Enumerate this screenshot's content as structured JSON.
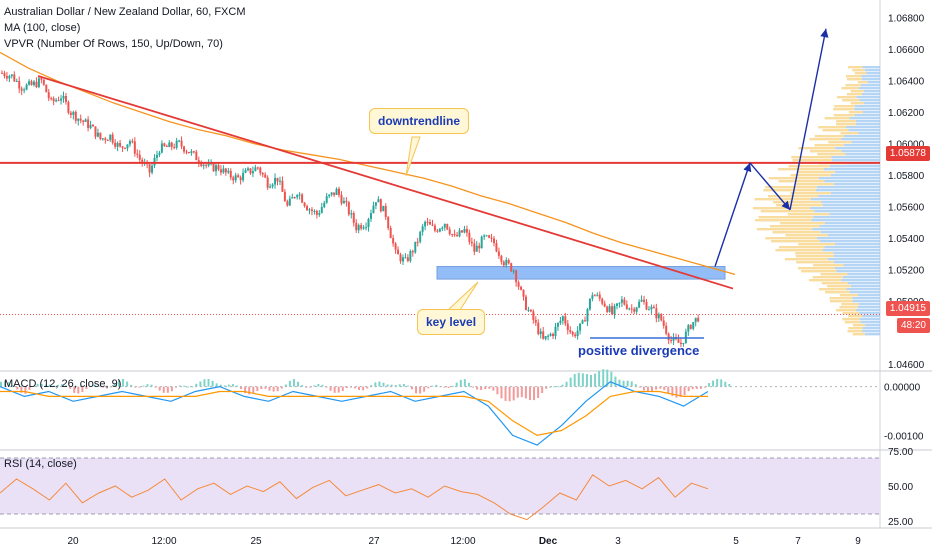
{
  "header": {
    "title": "Australian Dollar / New Zealand Dollar, 60, FXCM",
    "ma": "MA (100, close)",
    "vpvr": "VPVR (Number Of Rows, 150, Up/Down, 70)"
  },
  "annotations": {
    "downtrend": "downtrendline",
    "key_level": "key level",
    "divergence": "positive divergence"
  },
  "price_tags": {
    "resistance": "1.05878",
    "current": "1.04915",
    "countdown": "48:20"
  },
  "colors": {
    "up": "#26a69a",
    "down": "#ef5350",
    "ma": "#f7931e",
    "trendline": "#e53935",
    "hline": "#e53935",
    "key_zone": "#6fa8f5",
    "arrows": "#1a2fa8",
    "macd": "#2196f3",
    "signal": "#ff9800",
    "rsi": "#f48a3c",
    "rsi_band": "#ebe1f7"
  },
  "chart_data": [
    {
      "type": "candlestick",
      "title": "Australian Dollar / New Zealand Dollar, 60, FXCM",
      "ylim": [
        1.0455,
        1.069
      ],
      "y_ticks": [
        "1.06800",
        "1.06600",
        "1.06400",
        "1.06200",
        "1.06000",
        "1.05800",
        "1.05600",
        "1.05400",
        "1.05200",
        "1.05000",
        "1.04600"
      ],
      "y_tick_values": [
        1.068,
        1.066,
        1.064,
        1.062,
        1.06,
        1.058,
        1.056,
        1.054,
        1.052,
        1.05,
        1.046
      ],
      "x_ticks": [
        "20",
        "12:00",
        "25",
        "27",
        "12:00",
        "Dec",
        "3",
        "5",
        "7",
        "9"
      ],
      "close_path": [
        1.0645,
        1.0643,
        1.0636,
        1.0637,
        1.064,
        1.0626,
        1.063,
        1.062,
        1.0615,
        1.0611,
        1.0603,
        1.0605,
        1.0597,
        1.0602,
        1.059,
        1.0582,
        1.0597,
        1.0598,
        1.06,
        1.0595,
        1.059,
        1.0585,
        1.0585,
        1.058,
        1.0578,
        1.0582,
        1.0585,
        1.0575,
        1.0578,
        1.056,
        1.057,
        1.056,
        1.0555,
        1.0565,
        1.057,
        1.056,
        1.0547,
        1.055,
        1.0565,
        1.0555,
        1.053,
        1.0525,
        1.0535,
        1.055,
        1.0545,
        1.055,
        1.054,
        1.0545,
        1.0532,
        1.054,
        1.0537,
        1.0525,
        1.052,
        1.05,
        1.0488,
        1.0475,
        1.048,
        1.049,
        1.0478,
        1.0485,
        1.0505,
        1.05,
        1.0492,
        1.05,
        1.0495,
        1.05,
        1.0495,
        1.0488,
        1.0475,
        1.0473,
        1.0485,
        1.04915
      ],
      "ma100_path": [
        1.0658,
        1.0648,
        1.064,
        1.0633,
        1.0626,
        1.062,
        1.0614,
        1.0609,
        1.0605,
        1.06,
        1.0596,
        1.0593,
        1.059,
        1.0586,
        1.0582,
        1.0578,
        1.0573,
        1.0567,
        1.0562,
        1.0556,
        1.055,
        1.0543,
        1.0537,
        1.0532,
        1.0527,
        1.0522,
        1.0517
      ],
      "downtrend_line": {
        "start_price": 1.0643,
        "end_price": 1.0508
      },
      "resistance_level": 1.05878,
      "current_price": 1.04915,
      "key_level_zone": [
        1.0514,
        1.0522
      ],
      "projected_path": [
        1.0522,
        1.05878,
        1.0558,
        1.0673
      ],
      "volume_profile_note": "VPVR horizontal histogram at right"
    },
    {
      "type": "line",
      "title": "MACD (12, 26, close, 9)",
      "ylim": [
        -0.0013,
        0.0003
      ],
      "y_ticks": [
        "0.00000",
        "-0.00100"
      ],
      "y_tick_values": [
        0.0,
        -0.001
      ],
      "series": [
        {
          "values": [
            0.0,
            -0.0002,
            -0.0001,
            -0.0003,
            -0.0002,
            -0.0001,
            -0.0002,
            -0.0003,
            -0.0001,
            0.0,
            -0.0002,
            -0.0003,
            -0.0001,
            -0.0002,
            -0.0003,
            -0.0002,
            -0.0001,
            -0.0003,
            -0.0002,
            -0.0001,
            -0.0004,
            -0.001,
            -0.0012,
            -0.0008,
            -0.0003,
            0.0001,
            -0.0001,
            -0.0002,
            -0.0004,
            -0.0001
          ]
        },
        {
          "values": [
            -0.0001,
            -0.0001,
            -0.0002,
            -0.0002,
            -0.0002,
            -0.0002,
            -0.0002,
            -0.0002,
            -0.0002,
            -0.0001,
            -0.0001,
            -0.0002,
            -0.0002,
            -0.0002,
            -0.0002,
            -0.0002,
            -0.0002,
            -0.0002,
            -0.0002,
            -0.0002,
            -0.0003,
            -0.0007,
            -0.001,
            -0.0009,
            -0.0006,
            -0.0002,
            -0.0001,
            -0.0001,
            -0.0002,
            -0.0002
          ]
        }
      ]
    },
    {
      "type": "line",
      "title": "RSI (14, close)",
      "ylim": [
        20,
        75
      ],
      "y_ticks": [
        "75.00",
        "50.00",
        "25.00"
      ],
      "y_tick_values": [
        75,
        50,
        25
      ],
      "band": [
        30,
        70
      ],
      "values": [
        45,
        55,
        48,
        40,
        52,
        38,
        45,
        50,
        42,
        47,
        55,
        40,
        48,
        52,
        44,
        50,
        46,
        53,
        41,
        49,
        54,
        43,
        47,
        51,
        45,
        48,
        42,
        50,
        46,
        44,
        38,
        30,
        26,
        35,
        45,
        40,
        58,
        50,
        54,
        48,
        56,
        42,
        52,
        48
      ]
    }
  ]
}
